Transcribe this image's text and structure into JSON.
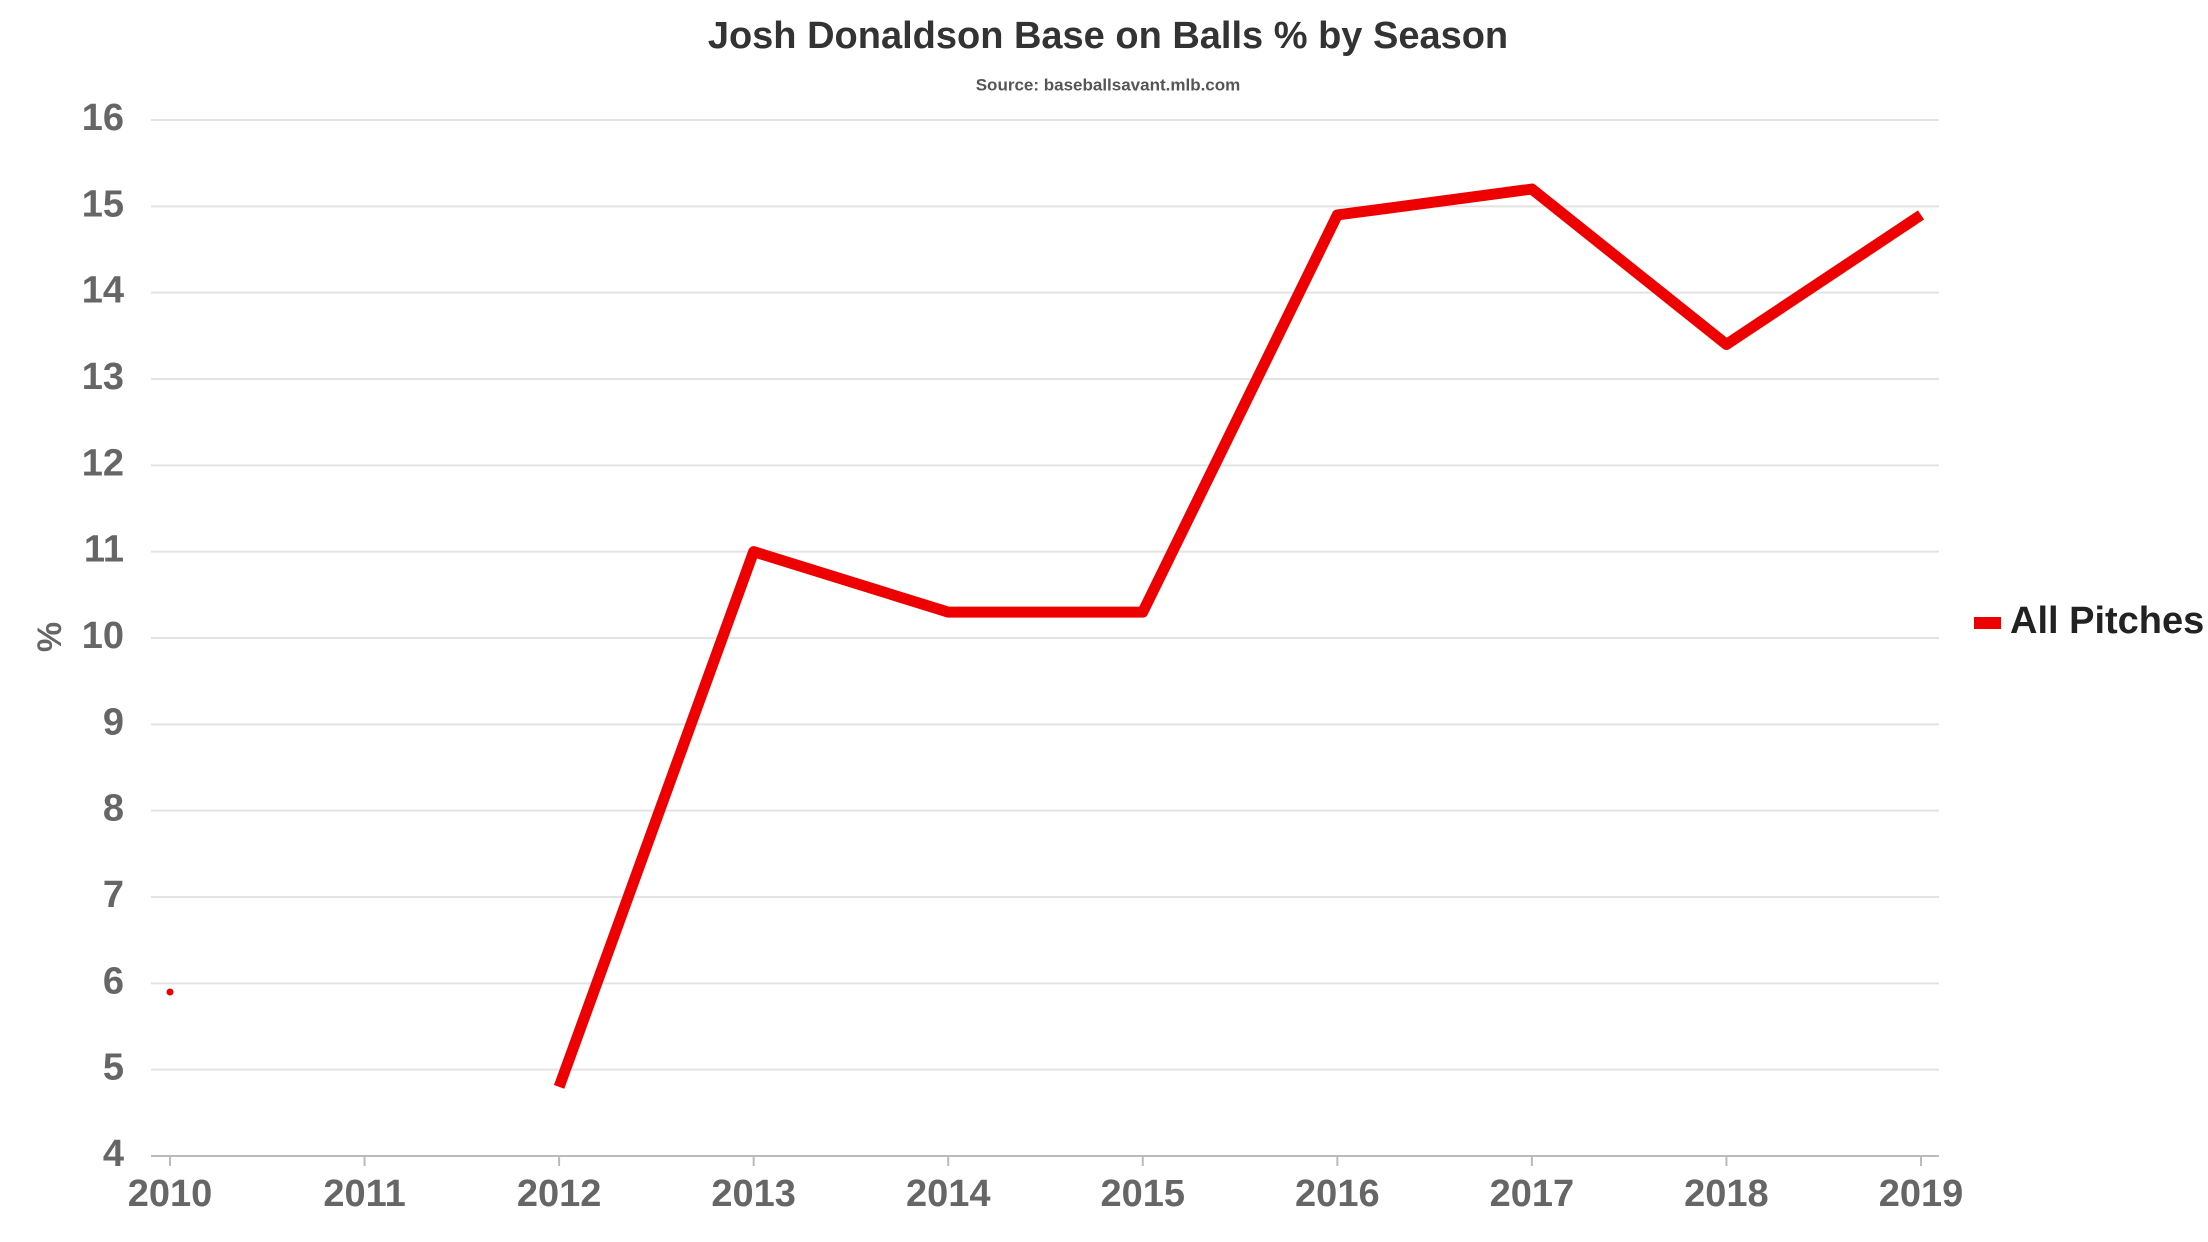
{
  "chart_data": {
    "type": "line",
    "title": "Josh Donaldson Base on Balls % by Season",
    "subtitle": "Source: baseballsavant.mlb.com",
    "y_label": "%",
    "x": [
      2010,
      2011,
      2012,
      2013,
      2014,
      2015,
      2016,
      2017,
      2018,
      2019
    ],
    "series": [
      {
        "name": "All Pitches",
        "color": "#ee0000",
        "values": [
          5.9,
          null,
          4.8,
          11.0,
          10.3,
          10.3,
          14.9,
          15.2,
          13.4,
          14.9
        ]
      }
    ],
    "xlim": [
      2010,
      2019
    ],
    "xticks": [
      2010,
      2011,
      2012,
      2013,
      2014,
      2015,
      2016,
      2017,
      2018,
      2019
    ],
    "ylim": [
      4,
      16
    ],
    "yticks": [
      4,
      5,
      6,
      7,
      8,
      9,
      10,
      11,
      12,
      13,
      14,
      15,
      16
    ],
    "grid": true,
    "legend": "right"
  }
}
